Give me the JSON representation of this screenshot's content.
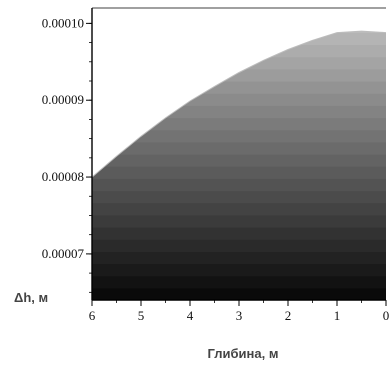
{
  "chart_data": {
    "type": "area",
    "xlabel": "Глибина, м",
    "ylabel": "Δh, м",
    "x_reversed": true,
    "xlim": [
      6,
      0
    ],
    "ylim": [
      6.4e-05,
      0.000102
    ],
    "x_ticks": [
      "6",
      "5",
      "4",
      "3",
      "2",
      "1",
      "0"
    ],
    "x_tick_values": [
      6,
      5,
      4,
      3,
      2,
      1,
      0
    ],
    "y_ticks": [
      "0.00010",
      "0.00009",
      "0.00008",
      "0.00007"
    ],
    "y_tick_values": [
      0.0001,
      9e-05,
      8e-05,
      7e-05
    ],
    "x": [
      6.0,
      5.5,
      5.0,
      4.5,
      4.0,
      3.5,
      3.0,
      2.5,
      2.0,
      1.5,
      1.0,
      0.5,
      0.0
    ],
    "y": [
      8e-05,
      8.27e-05,
      8.53e-05,
      8.77e-05,
      8.99e-05,
      9.18e-05,
      9.36e-05,
      9.52e-05,
      9.66e-05,
      9.78e-05,
      9.88e-05,
      9.9e-05,
      9.88e-05
    ],
    "fill": "vertical gradient bands",
    "colors": {
      "dark": "#0a0a0a",
      "light": "#c4c4c4",
      "axis": "#000000"
    },
    "grid": false
  }
}
